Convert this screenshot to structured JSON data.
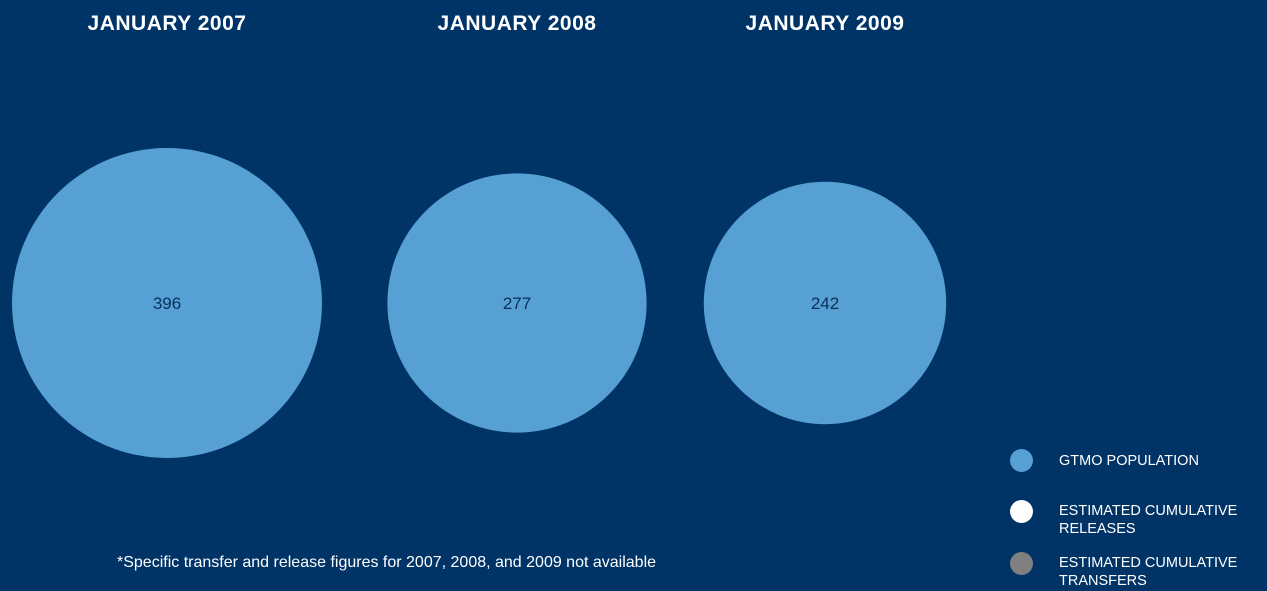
{
  "chart_data": {
    "type": "bubble",
    "categories": [
      "JANUARY 2007",
      "JANUARY 2008",
      "JANUARY 2009"
    ],
    "series": [
      {
        "name": "GTMO POPULATION",
        "values": [
          396,
          277,
          242
        ],
        "color": "#56a0d3"
      },
      {
        "name": "ESTIMATED CUMULATIVE RELEASES",
        "values": [],
        "color": "#ffffff"
      },
      {
        "name": "ESTIMATED CUMULATIVE TRANSFERS",
        "values": [],
        "color": "#808080"
      }
    ],
    "legend_position": "bottom-right",
    "footnote": "*Specific transfer and release figures for 2007, 2008, and 2009 not available"
  },
  "colors": {
    "background": "#003366",
    "label_text": "#0a2f5c"
  },
  "legend": {
    "items": [
      {
        "label_line1": "GTMO POPULATION",
        "label_line2": "",
        "color": "#56a0d3",
        "icon": "circle-swatch"
      },
      {
        "label_line1": "ESTIMATED CUMULATIVE",
        "label_line2": "RELEASES",
        "color": "#ffffff",
        "icon": "circle-swatch"
      },
      {
        "label_line1": "ESTIMATED CUMULATIVE",
        "label_line2": "TRANSFERS",
        "color": "#808080",
        "icon": "circle-swatch"
      }
    ]
  }
}
